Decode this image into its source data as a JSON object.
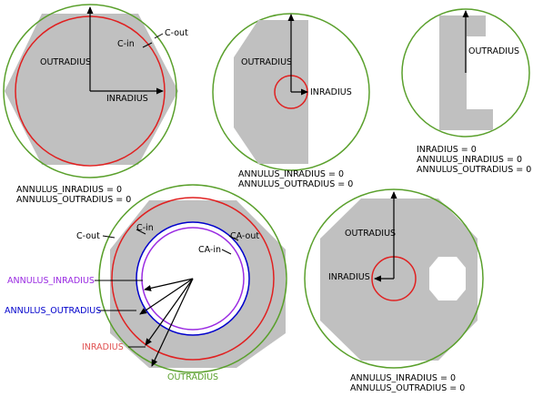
{
  "colors": {
    "shape_fill": "#c0c0c0",
    "outer_circle": "#5aa02c",
    "inner_circle": "#e02020",
    "annulus_outer_circle": "#0000cc",
    "annulus_inner_circle": "#9a2be2",
    "annulus_inradius_label": "#9a2be2",
    "annulus_outradius_label": "#0000cc",
    "inradius_label": "#e05050",
    "outradius_label": "#5aa02c",
    "text": "#000000"
  },
  "panel1": {
    "c_out": "C-out",
    "c_in": "C-in",
    "outradius": "OUTRADIUS",
    "inradius": "INRADIUS",
    "values": [
      "ANNULUS_INRADIUS = 0",
      "ANNULUS_OUTRADIUS = 0"
    ]
  },
  "panel2": {
    "outradius": "OUTRADIUS",
    "inradius": "INRADIUS",
    "values": [
      "ANNULUS_INRADIUS = 0",
      "ANNULUS_OUTRADIUS = 0"
    ]
  },
  "panel3": {
    "outradius": "OUTRADIUS",
    "values": [
      "INRADIUS = 0",
      "ANNULUS_INRADIUS = 0",
      "ANNULUS_OUTRADIUS = 0"
    ]
  },
  "panel4": {
    "c_out": "C-out",
    "c_in": "C-in",
    "ca_out": "CA-out",
    "ca_in": "CA-in",
    "annulus_inradius": "ANNULUS_INRADIUS",
    "annulus_outradius": "ANNULUS_OUTRADIUS",
    "inradius": "INRADIUS",
    "outradius": "OUTRADIUS"
  },
  "panel5": {
    "outradius": "OUTRADIUS",
    "inradius": "INRADIUS",
    "values": [
      "ANNULUS_INRADIUS = 0",
      "ANNULUS_OUTRADIUS = 0"
    ]
  }
}
